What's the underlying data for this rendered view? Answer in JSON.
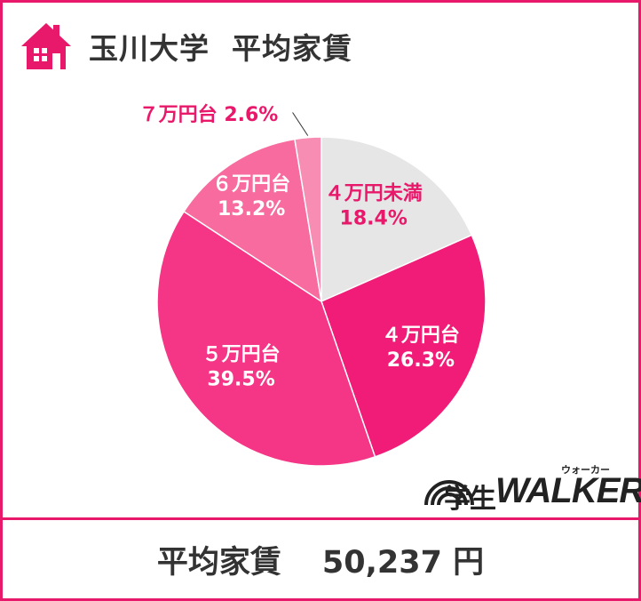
{
  "header": {
    "title": "玉川大学  平均家賃",
    "icon": "house-icon"
  },
  "colors": {
    "accent": "#e8196a",
    "text": "#333333"
  },
  "chart_data": {
    "type": "pie",
    "start": "12 o'clock",
    "direction": "clockwise",
    "slices": [
      {
        "label": "４万円未満",
        "value": 18.4,
        "value_label": "18.4%",
        "color": "#e6e6e6",
        "text_color": "#e8196a"
      },
      {
        "label": "４万円台",
        "value": 26.3,
        "value_label": "26.3%",
        "color": "#f01c77",
        "text_color": "#ffffff"
      },
      {
        "label": "５万円台",
        "value": 39.5,
        "value_label": "39.5%",
        "color": "#f53585",
        "text_color": "#ffffff"
      },
      {
        "label": "６万円台",
        "value": 13.2,
        "value_label": "13.2%",
        "color": "#f76b9e",
        "text_color": "#ffffff"
      },
      {
        "label": "７万円台",
        "value": 2.6,
        "value_label": "2.6%",
        "color": "#f78db3",
        "text_color": "#e8196a",
        "label_outside": true
      }
    ]
  },
  "logo": {
    "kanji": "学生",
    "kana": "ウォーカー",
    "wordmark": "WALKER"
  },
  "footer": {
    "label": "平均家賃",
    "value": "50,237 円"
  }
}
